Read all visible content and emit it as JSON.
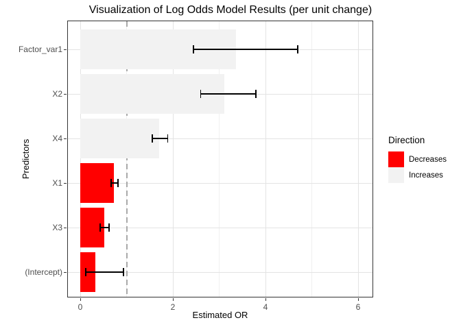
{
  "chart_data": {
    "type": "bar",
    "orientation": "horizontal",
    "title": "Visualization of Log Odds Model Results (per unit change)",
    "xlabel": "Estimated OR",
    "ylabel": "Predictors",
    "xlim": [
      -0.28,
      6.31
    ],
    "x_major_ticks": [
      0,
      2,
      4,
      6
    ],
    "x_minor_ticks": [
      1,
      3,
      5
    ],
    "x_tick_labels": [
      "0",
      "2",
      "4",
      "6"
    ],
    "grid": true,
    "reference_line": {
      "x": 1,
      "style": "dashed",
      "color": "#A9A9A9"
    },
    "bars": [
      {
        "label": "Factor_var1",
        "value": 3.37,
        "ci_low": 2.44,
        "ci_high": 4.7,
        "direction": "Increases"
      },
      {
        "label": "X2",
        "value": 3.11,
        "ci_low": 2.6,
        "ci_high": 3.79,
        "direction": "Increases"
      },
      {
        "label": "X4",
        "value": 1.7,
        "ci_low": 1.56,
        "ci_high": 1.89,
        "direction": "Increases"
      },
      {
        "label": "X1",
        "value": 0.73,
        "ci_low": 0.67,
        "ci_high": 0.81,
        "direction": "Decreases"
      },
      {
        "label": "X3",
        "value": 0.52,
        "ci_low": 0.43,
        "ci_high": 0.62,
        "direction": "Decreases"
      },
      {
        "label": "(Intercept)",
        "value": 0.32,
        "ci_low": 0.12,
        "ci_high": 0.93,
        "direction": "Decreases"
      }
    ],
    "legend": {
      "title": "Direction",
      "position": "right",
      "entries": [
        {
          "label": "Decreases",
          "color": "#FF0000"
        },
        {
          "label": "Increases",
          "color": "#F2F2F2"
        }
      ]
    },
    "colors": {
      "decreases": "#FF0000",
      "increases": "#F2F2F2",
      "reference_line": "#A9A9A9",
      "grid_major": "#E3E3E3",
      "grid_minor": "#F0F0F0",
      "panel_border": "#333333",
      "tick_label": "#4D4D4D"
    }
  }
}
